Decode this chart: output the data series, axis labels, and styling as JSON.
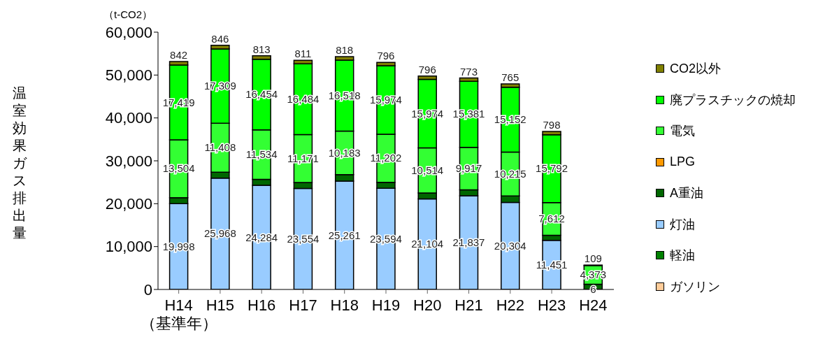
{
  "chart_data": {
    "type": "bar",
    "stacked": true,
    "ylabel": "温室効果ガス排出量",
    "annotations": [
      "（t-CO2）"
    ],
    "categories": [
      "H14\n（基準年）",
      "H15",
      "H16",
      "H17",
      "H18",
      "H19",
      "H20",
      "H21",
      "H22",
      "H23",
      "H24"
    ],
    "series": [
      {
        "name": "ガソリン",
        "color": "#ffcc99",
        "values": [
          0,
          0,
          0,
          0,
          0,
          0,
          0,
          0,
          0,
          0,
          0
        ]
      },
      {
        "name": "軽油",
        "color": "#008000",
        "values": [
          0,
          0,
          0,
          0,
          0,
          0,
          0,
          0,
          0,
          0,
          0
        ]
      },
      {
        "name": "灯油",
        "color": "#99ccff",
        "values": [
          19998,
          25968,
          24284,
          23554,
          25261,
          23594,
          21104,
          21837,
          20304,
          11451,
          6
        ],
        "value_labels": [
          "19,998",
          "25,968",
          "24,284",
          "23,554",
          "25,261",
          "23,594",
          "21,104",
          "21,837",
          "20,304",
          "11,451",
          "6"
        ]
      },
      {
        "name": "A重油",
        "color": "#006600",
        "values": [
          1400,
          1400,
          1400,
          1400,
          1500,
          1400,
          1400,
          1400,
          1500,
          1200,
          1200
        ]
      },
      {
        "name": "LPG",
        "color": "#ff9900",
        "values": [
          0,
          0,
          0,
          0,
          0,
          0,
          0,
          0,
          0,
          0,
          0
        ]
      },
      {
        "name": "電気",
        "color": "#33ff33",
        "values": [
          13504,
          11408,
          11534,
          11171,
          10183,
          11202,
          10514,
          9917,
          10215,
          7612,
          4373
        ],
        "value_labels": [
          "13,504",
          "11,408",
          "11,534",
          "11,171",
          "10,183",
          "11,202",
          "10,514",
          "9,917",
          "10,215",
          "7,612",
          "4,373"
        ]
      },
      {
        "name": "廃プラスチックの焼却",
        "color": "#00ff00",
        "values": [
          17419,
          17309,
          16454,
          16484,
          16518,
          15974,
          15974,
          15381,
          15152,
          15792,
          null
        ],
        "value_labels": [
          "17,419",
          "17,309",
          "16,454",
          "16,484",
          "16,518",
          "15,974",
          "15,974",
          "15,381",
          "15,152",
          "15,792",
          null
        ]
      },
      {
        "name": "CO2以外",
        "color": "#808000",
        "values": [
          842,
          846,
          813,
          811,
          818,
          796,
          796,
          773,
          765,
          798,
          109
        ],
        "value_labels": [
          "842",
          "846",
          "813",
          "811",
          "818",
          "796",
          "796",
          "773",
          "765",
          "798",
          "109"
        ]
      }
    ],
    "ylim": [
      0,
      60000
    ],
    "yticks": [
      {
        "value": 0,
        "label": "0"
      },
      {
        "value": 10000,
        "label": "10,000"
      },
      {
        "value": 20000,
        "label": "20,000"
      },
      {
        "value": 30000,
        "label": "30,000"
      },
      {
        "value": 40000,
        "label": "40,000"
      },
      {
        "value": 50000,
        "label": "50,000"
      },
      {
        "value": 60000,
        "label": "60,000"
      }
    ],
    "grid": false,
    "legend": "right"
  }
}
